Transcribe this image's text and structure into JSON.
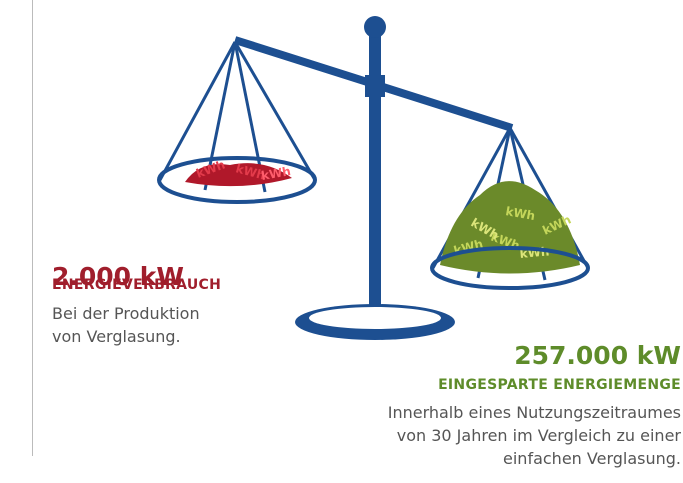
{
  "left": {
    "amount": "2.000 kW",
    "label": "ENERGIEVERBRAUCH",
    "lines": [
      "Bei der Produktion",
      "von Verglasung."
    ]
  },
  "right": {
    "amount": "257.000 kW",
    "label": "EINGESPARTE ENERGIEMENGE",
    "lines": [
      "Innerhalb eines Nutzungszeitraumes",
      "von 30 Jahren im Vergleich zu einer",
      "einfachen Verglasung."
    ]
  },
  "pile_label": "kWh"
}
